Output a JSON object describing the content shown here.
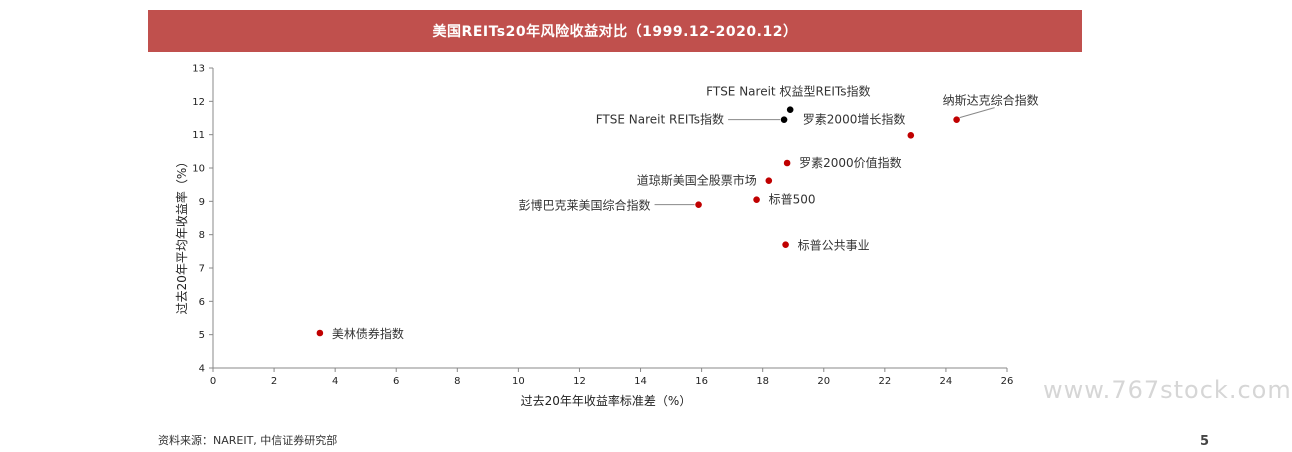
{
  "banner": {
    "title": "美国REITs20年风险收益对比（1999.12-2020.12）"
  },
  "chart_data": {
    "type": "scatter",
    "xlabel": "过去20年年收益率标准差（%）",
    "ylabel": "过去20年平均年收益率（%）",
    "xlim": [
      0,
      26
    ],
    "ylim": [
      4,
      13
    ],
    "xticks": [
      0,
      2,
      4,
      6,
      8,
      10,
      12,
      14,
      16,
      18,
      20,
      22,
      24,
      26
    ],
    "yticks": [
      4,
      5,
      6,
      7,
      8,
      9,
      10,
      11,
      12,
      13
    ],
    "grid": false,
    "points": [
      {
        "label": "FTSE Nareit 权益型REITs指数",
        "x": 18.9,
        "y": 11.75,
        "color": "#000000"
      },
      {
        "label": "FTSE Nareit REITs指数",
        "x": 18.7,
        "y": 11.45,
        "color": "#000000"
      },
      {
        "label": "罗素2000增长指数",
        "x": 22.85,
        "y": 10.98,
        "color": "#c00000"
      },
      {
        "label": "纳斯达克综合指数",
        "x": 24.35,
        "y": 11.45,
        "color": "#c00000"
      },
      {
        "label": "罗素2000价值指数",
        "x": 18.8,
        "y": 10.15,
        "color": "#c00000"
      },
      {
        "label": "道琼斯美国全股票市场",
        "x": 18.2,
        "y": 9.62,
        "color": "#c00000"
      },
      {
        "label": "标普500",
        "x": 17.8,
        "y": 9.05,
        "color": "#c00000"
      },
      {
        "label": "彭博巴克莱美国综合指数",
        "x": 15.9,
        "y": 8.9,
        "color": "#c00000"
      },
      {
        "label": "标普公共事业",
        "x": 18.75,
        "y": 7.7,
        "color": "#c00000"
      },
      {
        "label": "美林债券指数",
        "x": 3.5,
        "y": 5.05,
        "color": "#c00000"
      }
    ]
  },
  "footer": {
    "source": "资料来源：NAREIT, 中信证券研究部",
    "page_number": "5",
    "watermark": "www.767stock.com"
  }
}
